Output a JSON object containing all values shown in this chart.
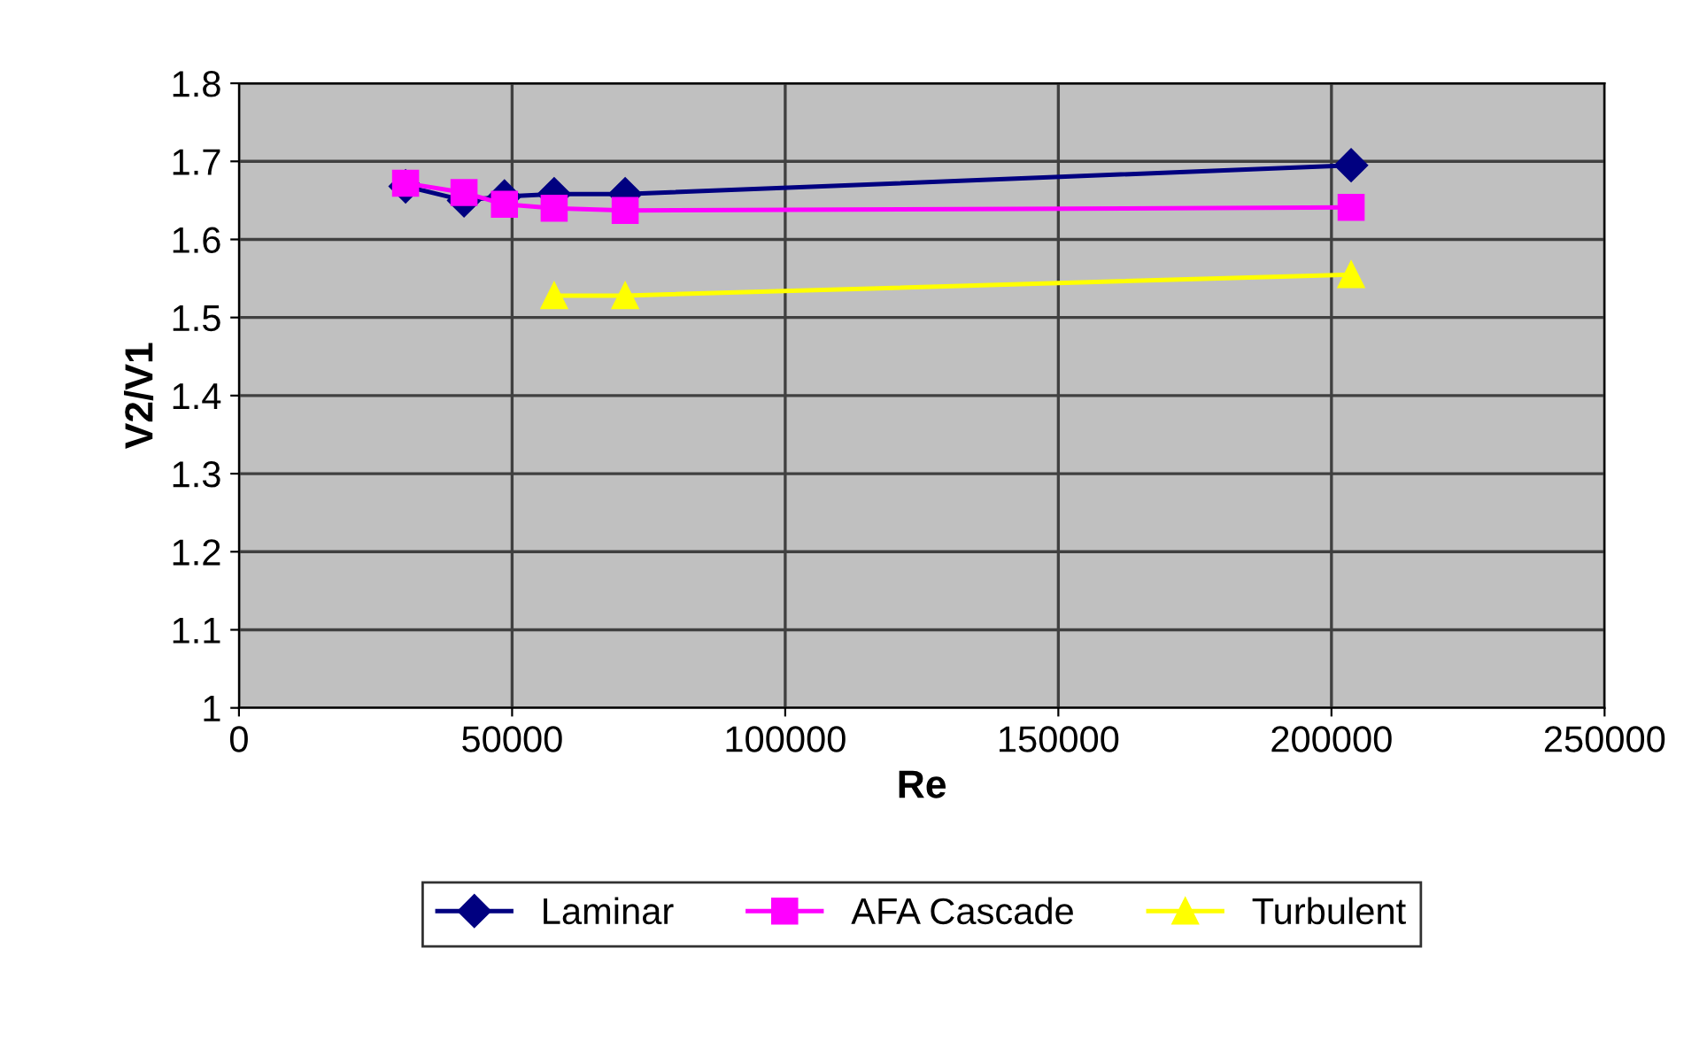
{
  "chart_data": {
    "type": "line",
    "xlabel": "Re",
    "ylabel": "V2/V1",
    "xlim": [
      0,
      250000
    ],
    "xticks": [
      0,
      50000,
      100000,
      150000,
      200000,
      250000
    ],
    "ylim": [
      1,
      1.8
    ],
    "yticks": [
      1,
      {
        "value": 1.1,
        "label": "1.1"
      },
      {
        "value": 1.2,
        "label": "1.2"
      },
      {
        "value": 1.3,
        "label": "1.3"
      },
      {
        "value": 1.4,
        "label": "1.4"
      },
      {
        "value": 1.5,
        "label": "1.5"
      },
      {
        "value": 1.6,
        "label": "1.6"
      },
      {
        "value": 1.7,
        "label": "1.7"
      },
      {
        "value": 1.8,
        "label": "1.8"
      }
    ],
    "grid": true,
    "legend": "bottom",
    "series": [
      {
        "name": "Laminar",
        "color": "#000080",
        "marker": "diamond",
        "x": [
          30500,
          41200,
          48600,
          57700,
          70700,
          203600
        ],
        "values": [
          1.668,
          1.65,
          1.655,
          1.658,
          1.658,
          1.695
        ]
      },
      {
        "name": "AFA Cascade",
        "color": "#ff00ff",
        "marker": "square",
        "x": [
          30500,
          41200,
          48600,
          57700,
          70700,
          203600
        ],
        "values": [
          1.672,
          1.66,
          1.645,
          1.64,
          1.637,
          1.641
        ]
      },
      {
        "name": "Turbulent",
        "color": "#ffff00",
        "marker": "triangle",
        "x": [
          57700,
          70700,
          203600
        ],
        "values": [
          1.528,
          1.528,
          1.555
        ]
      }
    ]
  }
}
